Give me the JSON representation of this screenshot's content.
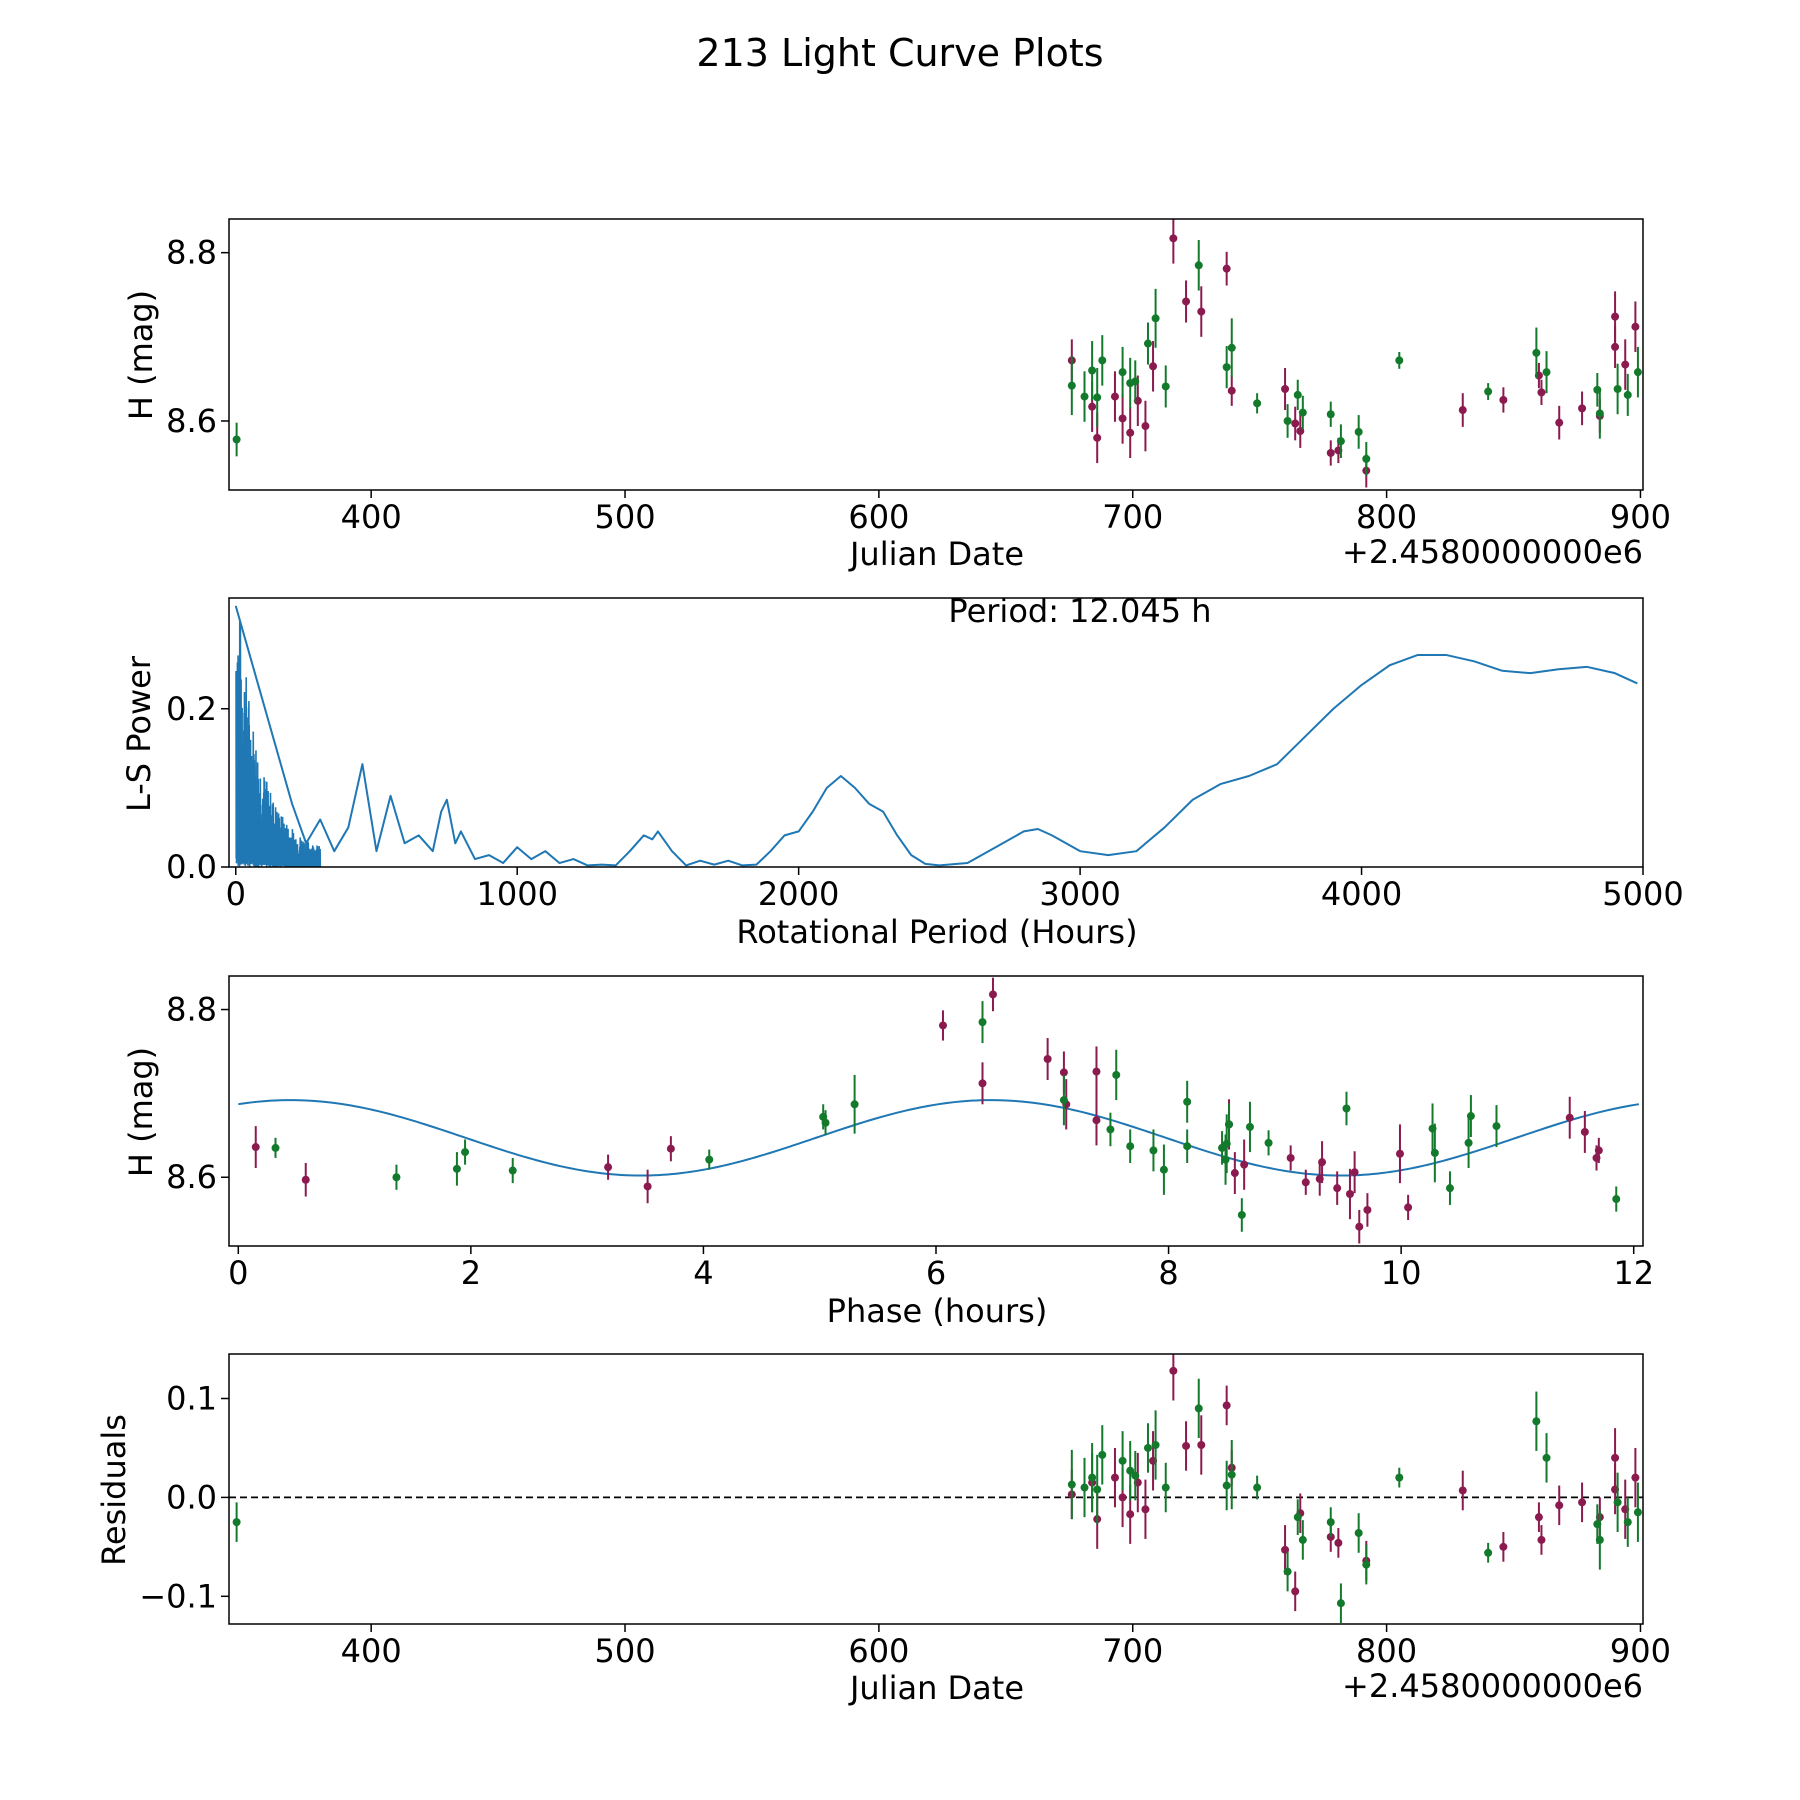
{
  "title": "213 Light Curve Plots",
  "colors": {
    "red": "#8b1a4f",
    "green": "#137a2c",
    "line": "#1f77b4",
    "axis": "#000000"
  },
  "chart_data": [
    {
      "id": "p1",
      "type": "scatter",
      "xlabel": "Julian Date",
      "ylabel": "H (mag)",
      "offset_label": "+2.4580000000e6",
      "xlim": [
        344,
        901
      ],
      "ylim": [
        8.518,
        8.84
      ],
      "xticks": [
        400,
        500,
        600,
        700,
        800,
        900
      ],
      "yticks": [
        8.6,
        8.8
      ],
      "ytick_labels": [
        "8.6",
        "8.8"
      ],
      "series": [
        {
          "name": "red",
          "color_key": "red",
          "x": [
            676,
            684,
            686,
            693,
            696,
            699,
            702,
            705,
            708,
            716,
            721,
            727,
            737,
            739,
            760,
            764,
            766,
            778,
            781,
            792,
            830,
            846,
            860,
            861,
            868,
            877,
            884,
            890,
            890,
            894,
            898
          ],
          "y": [
            8.672,
            8.617,
            8.58,
            8.629,
            8.603,
            8.586,
            8.624,
            8.594,
            8.665,
            8.817,
            8.742,
            8.73,
            8.781,
            8.636,
            8.638,
            8.597,
            8.588,
            8.562,
            8.565,
            8.541,
            8.613,
            8.625,
            8.654,
            8.634,
            8.598,
            8.615,
            8.606,
            8.724,
            8.688,
            8.667,
            8.712
          ],
          "err": [
            0.025,
            0.03,
            0.03,
            0.03,
            0.03,
            0.03,
            0.03,
            0.03,
            0.03,
            0.03,
            0.025,
            0.03,
            0.02,
            0.018,
            0.025,
            0.02,
            0.02,
            0.015,
            0.015,
            0.02,
            0.02,
            0.015,
            0.015,
            0.015,
            0.02,
            0.02,
            0.02,
            0.03,
            0.025,
            0.03,
            0.03
          ]
        },
        {
          "name": "green",
          "color_key": "green",
          "x": [
            347,
            676,
            681,
            684,
            686,
            688,
            696,
            699,
            701,
            706,
            709,
            713,
            726,
            737,
            739,
            749,
            761,
            765,
            767,
            778,
            782,
            789,
            792,
            805,
            840,
            859,
            863,
            883,
            884,
            891,
            895,
            899
          ],
          "y": [
            8.578,
            8.642,
            8.629,
            8.66,
            8.628,
            8.672,
            8.658,
            8.645,
            8.647,
            8.692,
            8.722,
            8.641,
            8.785,
            8.664,
            8.687,
            8.621,
            8.6,
            8.631,
            8.61,
            8.608,
            8.576,
            8.587,
            8.555,
            8.672,
            8.635,
            8.681,
            8.658,
            8.637,
            8.609,
            8.638,
            8.631,
            8.658
          ],
          "err": [
            0.02,
            0.035,
            0.03,
            0.035,
            0.035,
            0.03,
            0.03,
            0.03,
            0.025,
            0.025,
            0.035,
            0.025,
            0.03,
            0.025,
            0.035,
            0.012,
            0.02,
            0.018,
            0.02,
            0.015,
            0.02,
            0.02,
            0.02,
            0.01,
            0.01,
            0.03,
            0.025,
            0.02,
            0.03,
            0.03,
            0.025,
            0.03
          ]
        }
      ]
    },
    {
      "id": "p2",
      "type": "line",
      "xlabel": "Rotational Period (Hours)",
      "ylabel": "L-S Power",
      "annotation": "Period: 12.045 h",
      "xlim": [
        -24,
        5000
      ],
      "ylim": [
        0,
        0.34
      ],
      "xticks": [
        0,
        1000,
        2000,
        3000,
        4000,
        5000
      ],
      "yticks": [
        0.0,
        0.2
      ],
      "ytick_labels": [
        "0.0",
        "0.2"
      ],
      "series": [
        {
          "name": "periodogram",
          "color_key": "line",
          "x": [
            0,
            200,
            250,
            300,
            350,
            400,
            450,
            500,
            550,
            600,
            650,
            700,
            730,
            750,
            780,
            800,
            850,
            900,
            950,
            1000,
            1050,
            1100,
            1150,
            1200,
            1250,
            1300,
            1350,
            1400,
            1450,
            1480,
            1500,
            1550,
            1600,
            1650,
            1700,
            1750,
            1800,
            1850,
            1900,
            1950,
            2000,
            2050,
            2100,
            2150,
            2200,
            2250,
            2300,
            2350,
            2400,
            2450,
            2500,
            2600,
            2700,
            2800,
            2850,
            2900,
            3000,
            3100,
            3200,
            3300,
            3400,
            3500,
            3600,
            3700,
            3800,
            3900,
            4000,
            4100,
            4200,
            4300,
            4400,
            4500,
            4600,
            4700,
            4800,
            4900,
            4980
          ],
          "y": [
            0.33,
            0.08,
            0.03,
            0.06,
            0.02,
            0.05,
            0.13,
            0.02,
            0.09,
            0.03,
            0.04,
            0.02,
            0.07,
            0.085,
            0.03,
            0.045,
            0.01,
            0.015,
            0.005,
            0.025,
            0.01,
            0.02,
            0.005,
            0.01,
            0.002,
            0.003,
            0.002,
            0.02,
            0.04,
            0.035,
            0.045,
            0.02,
            0.002,
            0.008,
            0.003,
            0.008,
            0.002,
            0.003,
            0.02,
            0.04,
            0.045,
            0.07,
            0.1,
            0.115,
            0.1,
            0.08,
            0.07,
            0.04,
            0.015,
            0.004,
            0.002,
            0.005,
            0.025,
            0.045,
            0.048,
            0.04,
            0.02,
            0.015,
            0.02,
            0.05,
            0.085,
            0.105,
            0.115,
            0.13,
            0.165,
            0.2,
            0.23,
            0.255,
            0.268,
            0.268,
            0.26,
            0.248,
            0.245,
            0.25,
            0.253,
            0.245,
            0.232
          ]
        }
      ]
    },
    {
      "id": "p3",
      "type": "scatter",
      "xlabel": "Phase (hours)",
      "ylabel": "H (mag)",
      "xlim": [
        -0.08,
        12.08
      ],
      "ylim": [
        8.518,
        8.84
      ],
      "xticks": [
        0,
        2,
        4,
        6,
        8,
        10,
        12
      ],
      "yticks": [
        8.6,
        8.8
      ],
      "ytick_labels": [
        "8.6",
        "8.8"
      ],
      "model": {
        "mean": 8.647,
        "amplitude": 0.045,
        "phase_peak": 0.45,
        "period": 6.0225,
        "xmax": 12.045
      },
      "series": [
        {
          "name": "red",
          "color_key": "red",
          "x": [
            0.15,
            0.58,
            3.18,
            3.52,
            3.72,
            6.06,
            6.4,
            6.49,
            6.96,
            7.1,
            7.12,
            7.38,
            7.38,
            8.52,
            8.57,
            8.65,
            9.05,
            9.18,
            9.3,
            9.32,
            9.45,
            9.56,
            9.6,
            9.64,
            9.71,
            9.99,
            10.06,
            11.45,
            11.58,
            11.68,
            11.7
          ],
          "y": [
            8.636,
            8.597,
            8.612,
            8.589,
            8.634,
            8.781,
            8.712,
            8.818,
            8.741,
            8.725,
            8.687,
            8.668,
            8.726,
            8.663,
            8.605,
            8.615,
            8.623,
            8.594,
            8.598,
            8.618,
            8.587,
            8.58,
            8.606,
            8.541,
            8.561,
            8.628,
            8.564,
            8.671,
            8.654,
            8.623,
            8.632
          ],
          "err": [
            0.025,
            0.02,
            0.015,
            0.02,
            0.015,
            0.018,
            0.025,
            0.02,
            0.025,
            0.025,
            0.03,
            0.03,
            0.03,
            0.03,
            0.025,
            0.03,
            0.015,
            0.015,
            0.02,
            0.025,
            0.02,
            0.03,
            0.025,
            0.02,
            0.02,
            0.035,
            0.015,
            0.025,
            0.025,
            0.015,
            0.015
          ]
        },
        {
          "name": "green",
          "color_key": "green",
          "x": [
            0.32,
            1.36,
            1.88,
            1.95,
            2.36,
            4.05,
            5.03,
            5.05,
            5.3,
            6.4,
            7.1,
            7.5,
            7.55,
            7.67,
            7.87,
            7.96,
            8.16,
            8.16,
            8.46,
            8.49,
            8.5,
            8.52,
            8.63,
            8.7,
            8.86,
            9.53,
            10.27,
            10.29,
            10.42,
            10.58,
            10.6,
            10.82,
            11.85
          ],
          "y": [
            8.635,
            8.6,
            8.61,
            8.63,
            8.608,
            8.621,
            8.672,
            8.665,
            8.687,
            8.785,
            8.692,
            8.657,
            8.722,
            8.637,
            8.632,
            8.609,
            8.69,
            8.637,
            8.635,
            8.621,
            8.64,
            8.663,
            8.555,
            8.66,
            8.641,
            8.682,
            8.658,
            8.629,
            8.587,
            8.641,
            8.673,
            8.661,
            8.574
          ],
          "err": [
            0.012,
            0.015,
            0.02,
            0.015,
            0.015,
            0.012,
            0.015,
            0.015,
            0.035,
            0.025,
            0.03,
            0.02,
            0.03,
            0.02,
            0.025,
            0.03,
            0.025,
            0.02,
            0.02,
            0.03,
            0.035,
            0.025,
            0.02,
            0.03,
            0.015,
            0.02,
            0.03,
            0.035,
            0.02,
            0.03,
            0.025,
            0.025,
            0.015
          ]
        }
      ]
    },
    {
      "id": "p4",
      "type": "scatter",
      "xlabel": "Julian Date",
      "ylabel": "Residuals",
      "offset_label": "+2.4580000000e6",
      "xlim": [
        344,
        901
      ],
      "ylim": [
        -0.128,
        0.145
      ],
      "xticks": [
        400,
        500,
        600,
        700,
        800,
        900
      ],
      "yticks": [
        -0.1,
        0.0,
        0.1
      ],
      "ytick_labels": [
        "−0.1",
        "0.0",
        "0.1"
      ],
      "zero_line": true,
      "series": [
        {
          "name": "red",
          "color_key": "red",
          "x": [
            676,
            684,
            686,
            693,
            696,
            699,
            702,
            705,
            708,
            716,
            721,
            727,
            737,
            739,
            760,
            764,
            766,
            778,
            781,
            792,
            830,
            846,
            860,
            861,
            868,
            877,
            884,
            890,
            890,
            894,
            898
          ],
          "y": [
            0.003,
            0.015,
            -0.022,
            0.02,
            0.0,
            -0.017,
            0.015,
            -0.012,
            0.037,
            0.128,
            0.052,
            0.053,
            0.093,
            0.03,
            -0.053,
            -0.095,
            -0.016,
            -0.04,
            -0.046,
            -0.064,
            0.007,
            -0.05,
            -0.02,
            -0.043,
            -0.008,
            -0.005,
            -0.02,
            0.04,
            0.008,
            -0.012,
            0.02
          ],
          "err": [
            0.025,
            0.03,
            0.03,
            0.03,
            0.03,
            0.03,
            0.03,
            0.03,
            0.03,
            0.03,
            0.025,
            0.03,
            0.02,
            0.018,
            0.025,
            0.02,
            0.02,
            0.015,
            0.015,
            0.02,
            0.02,
            0.015,
            0.015,
            0.015,
            0.02,
            0.02,
            0.02,
            0.03,
            0.025,
            0.03,
            0.03
          ]
        },
        {
          "name": "green",
          "color_key": "green",
          "x": [
            347,
            676,
            681,
            684,
            686,
            688,
            696,
            699,
            701,
            706,
            709,
            713,
            726,
            737,
            739,
            749,
            761,
            765,
            767,
            778,
            782,
            789,
            792,
            805,
            840,
            859,
            863,
            883,
            884,
            891,
            895,
            899
          ],
          "y": [
            -0.025,
            0.013,
            0.01,
            0.02,
            0.008,
            0.043,
            0.037,
            0.027,
            0.022,
            0.05,
            0.053,
            0.01,
            0.09,
            0.012,
            0.023,
            0.01,
            -0.075,
            -0.02,
            -0.043,
            -0.025,
            -0.107,
            -0.036,
            -0.068,
            0.02,
            -0.056,
            0.077,
            0.04,
            -0.027,
            -0.043,
            -0.005,
            -0.025,
            -0.015
          ],
          "err": [
            0.02,
            0.035,
            0.03,
            0.035,
            0.035,
            0.03,
            0.03,
            0.03,
            0.025,
            0.025,
            0.035,
            0.025,
            0.03,
            0.025,
            0.035,
            0.012,
            0.02,
            0.018,
            0.02,
            0.015,
            0.02,
            0.02,
            0.02,
            0.01,
            0.01,
            0.03,
            0.025,
            0.02,
            0.03,
            0.03,
            0.025,
            0.03
          ]
        }
      ]
    }
  ]
}
